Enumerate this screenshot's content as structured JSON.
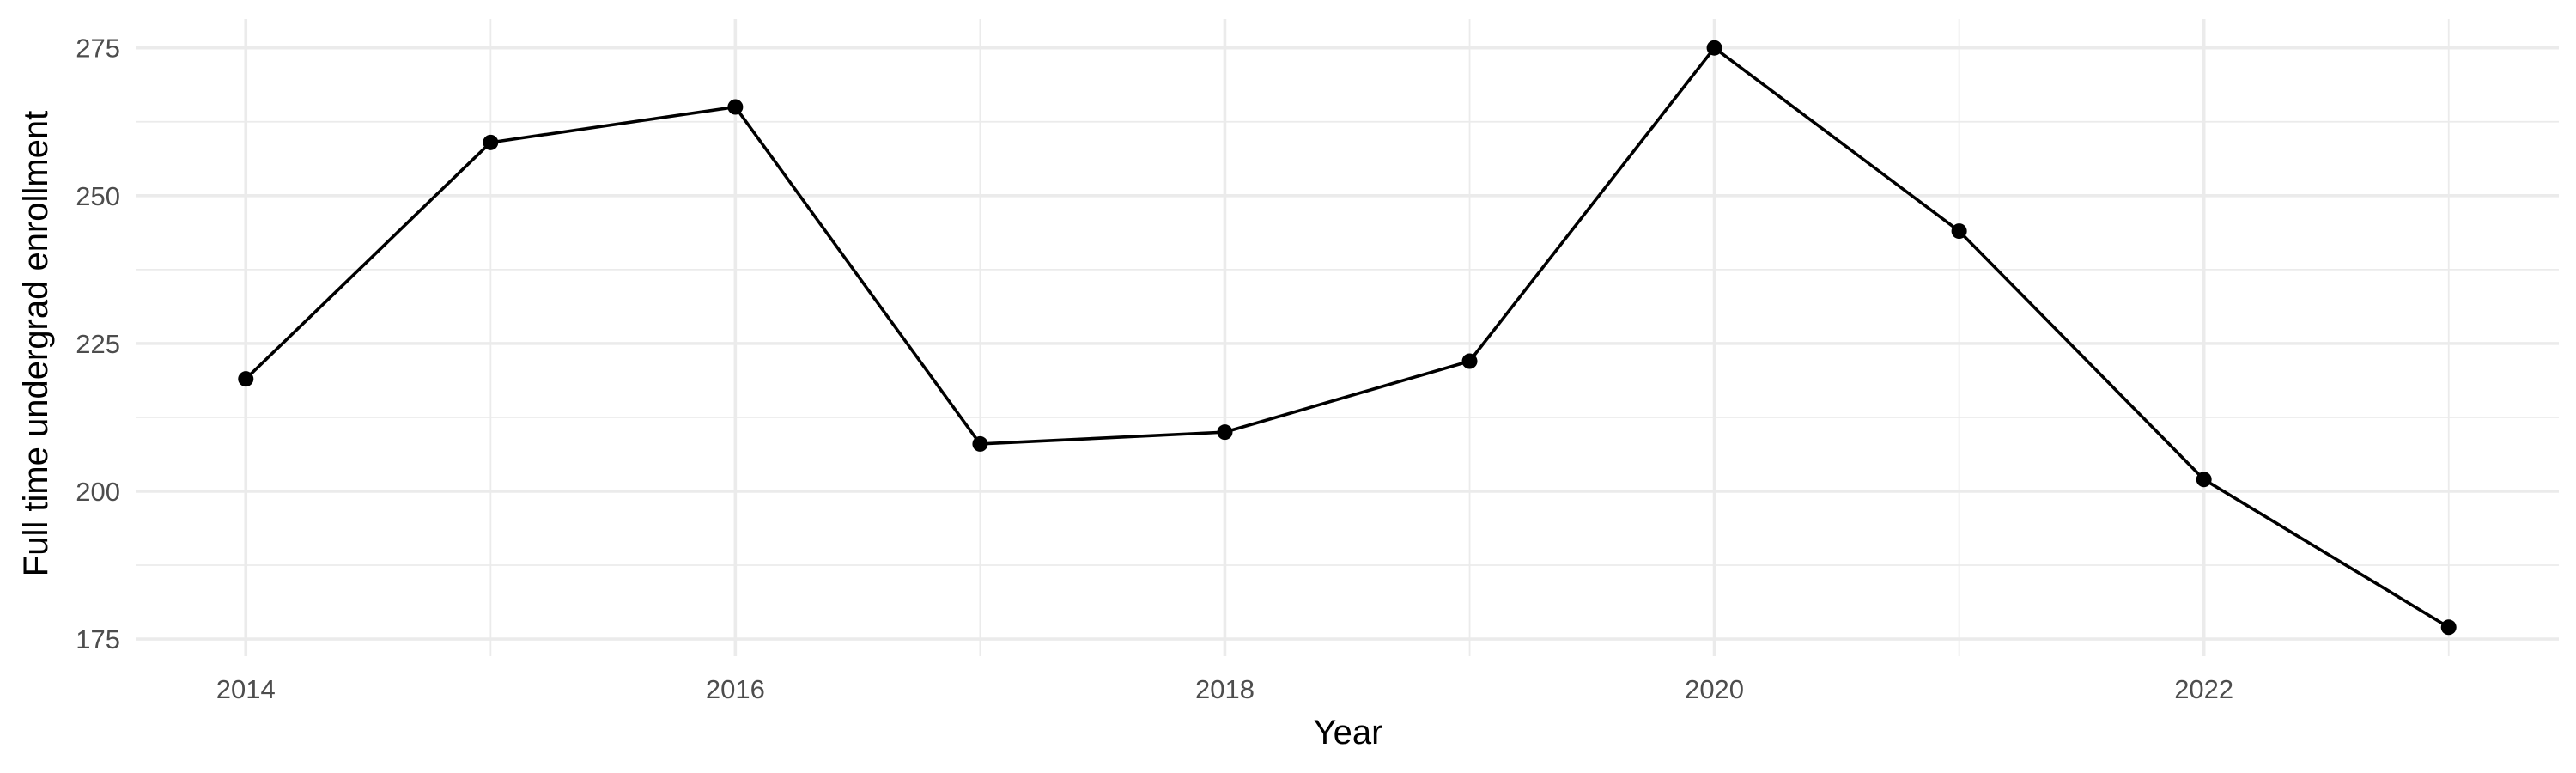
{
  "chart_data": {
    "type": "line",
    "title": "",
    "xlabel": "Year",
    "ylabel": "Full time undergrad enrollment",
    "x": [
      2014,
      2015,
      2016,
      2017,
      2018,
      2019,
      2020,
      2021,
      2022,
      2023
    ],
    "series": [
      {
        "values": [
          219,
          259,
          265,
          208,
          210,
          222,
          275,
          244,
          202,
          177
        ]
      }
    ],
    "xlim": [
      2013.55,
      2023.45
    ],
    "ylim": [
      172.1,
      279.9
    ],
    "x_ticks": [
      2014,
      2016,
      2018,
      2020,
      2022
    ],
    "y_ticks": [
      175,
      200,
      225,
      250,
      275
    ],
    "grid": true,
    "legend": "none",
    "line_color": "#000000",
    "grid_color": "#ebebeb"
  }
}
